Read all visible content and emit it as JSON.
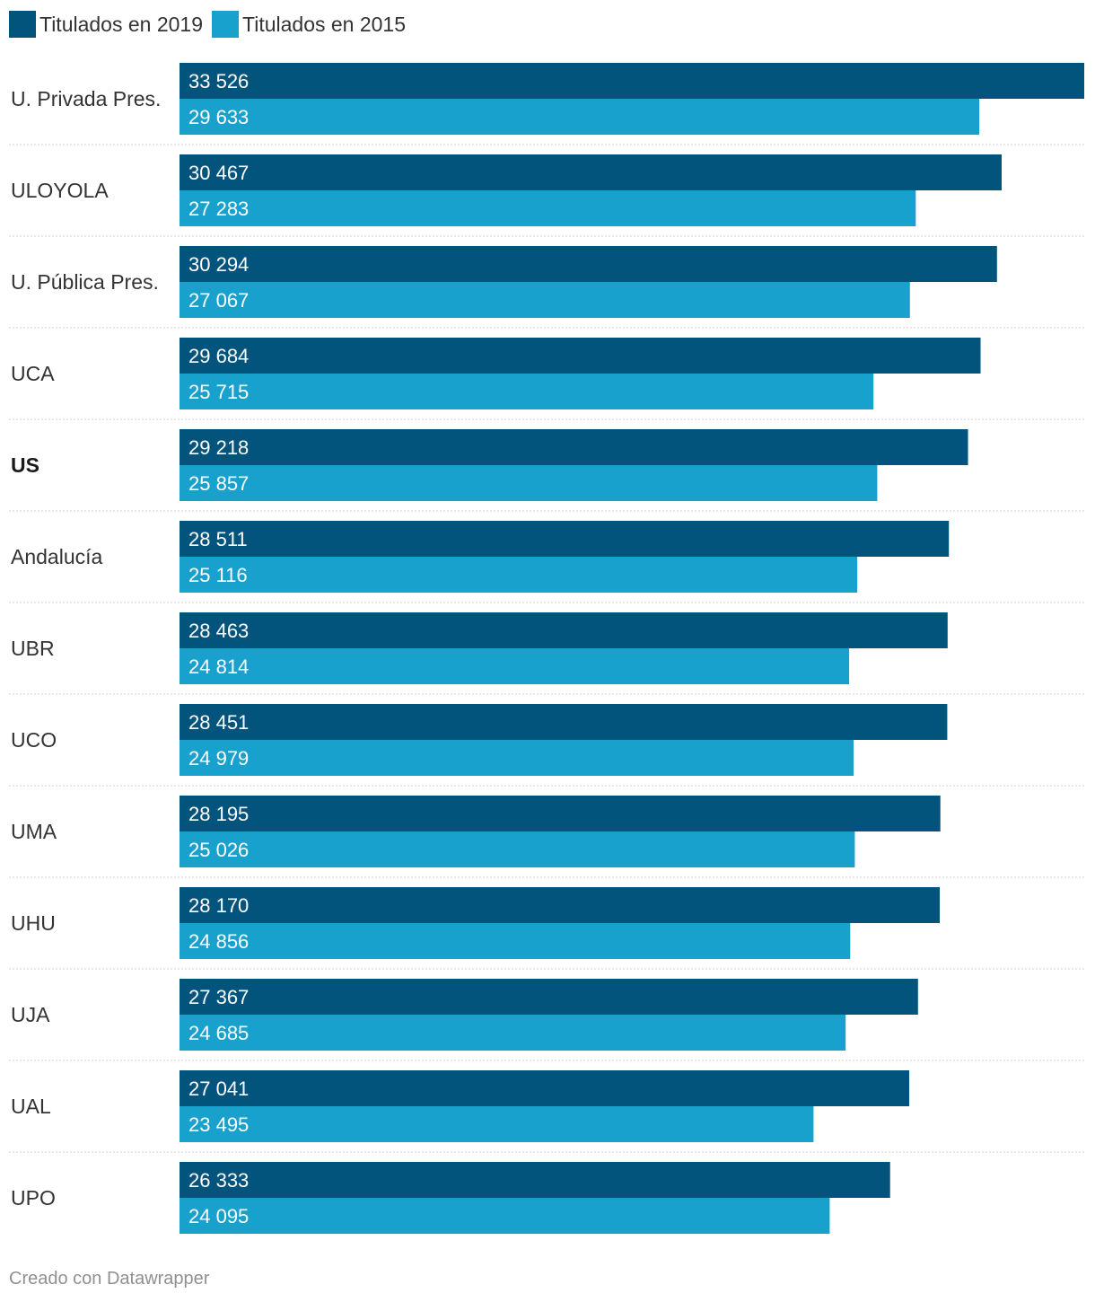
{
  "chart_data": {
    "type": "bar",
    "orientation": "horizontal",
    "title": "",
    "xlabel": "",
    "ylabel": "",
    "xlim": [
      0,
      33526
    ],
    "categories": [
      "U. Privada Pres.",
      "ULOYOLA",
      "U. Pública Pres.",
      "UCA",
      "US",
      "Andalucía",
      "UBR",
      "UCO",
      "UMA",
      "UHU",
      "UJA",
      "UAL",
      "UPO"
    ],
    "highlighted_categories": [
      "US"
    ],
    "series": [
      {
        "name": "Titulados en 2019",
        "color": "#03547c",
        "values": [
          33526,
          30467,
          30294,
          29684,
          29218,
          28511,
          28463,
          28451,
          28195,
          28170,
          27367,
          27041,
          26333
        ]
      },
      {
        "name": "Titulados en 2015",
        "color": "#18a1cd",
        "values": [
          29633,
          27283,
          27067,
          25715,
          25857,
          25116,
          24814,
          24979,
          25026,
          24856,
          24685,
          23495,
          24095
        ]
      }
    ],
    "legend_position": "top-left",
    "number_format": "space-thousands"
  },
  "footer": {
    "credit": "Creado con Datawrapper"
  }
}
